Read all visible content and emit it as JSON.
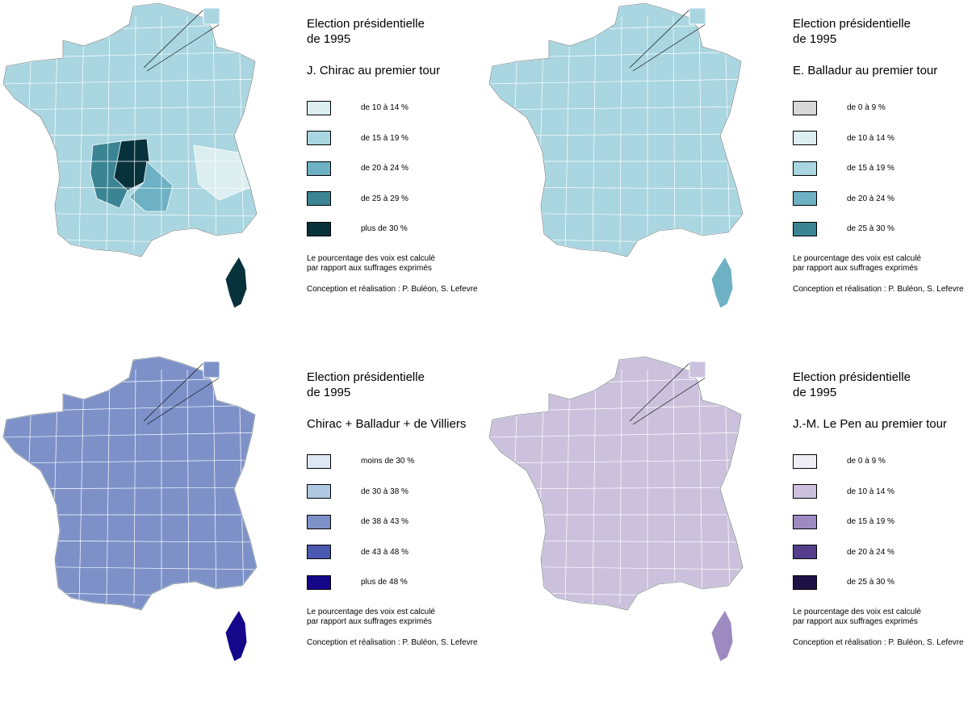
{
  "maps": [
    {
      "title_line1": "Election présidentielle",
      "title_line2": "de 1995",
      "subtitle": "J. Chirac au premier tour",
      "legend": [
        {
          "label": "de 10 à 14 %",
          "color": "#dceeef"
        },
        {
          "label": "de 15 à 19 %",
          "color": "#a9d6e0"
        },
        {
          "label": "de 20 à 24 %",
          "color": "#6eb1c4"
        },
        {
          "label": "de 25 à 29 %",
          "color": "#3b8494"
        },
        {
          "label": "plus de 30 %",
          "color": "#07323b"
        }
      ],
      "note_line1": "Le pourcentage des voix est calculé",
      "note_line2": "par rapport aux suffrages exprimés",
      "credit": "Conception et réalisation : P. Buléon, S. Lefevre",
      "base_color": "#a9d6e0",
      "corsica_color": "#07323b"
    },
    {
      "title_line1": "Election présidentielle",
      "title_line2": "de 1995",
      "subtitle": "E. Balladur au premier tour",
      "legend": [
        {
          "label": "de 0 à 9 %",
          "color": "#d8d8d8"
        },
        {
          "label": "de 10 à 14 %",
          "color": "#dceeef"
        },
        {
          "label": "de 15 à 19 %",
          "color": "#a9d6e0"
        },
        {
          "label": "de 20 à 24 %",
          "color": "#6eb1c4"
        },
        {
          "label": "de 25 à 30 %",
          "color": "#3b8494"
        }
      ],
      "note_line1": "Le pourcentage des voix est calculé",
      "note_line2": "par rapport aux suffrages exprimés",
      "credit": "Conception et réalisation : P. Buléon, S. Lefevre",
      "base_color": "#a9d6e0",
      "corsica_color": "#6eb1c4"
    },
    {
      "title_line1": "Election présidentielle",
      "title_line2": "de 1995",
      "subtitle": "Chirac + Balladur + de Villiers",
      "legend": [
        {
          "label": "moins de 30 %",
          "color": "#dde8f4"
        },
        {
          "label": "de 30 à 38 %",
          "color": "#b1c8e2"
        },
        {
          "label": "de 38 à 43 %",
          "color": "#7d91c8"
        },
        {
          "label": "de 43 à 48 %",
          "color": "#4b58b0"
        },
        {
          "label": "plus de 48 %",
          "color": "#16068a"
        }
      ],
      "note_line1": "Le pourcentage des voix est calculé",
      "note_line2": "par rapport aux suffrages exprimés",
      "credit": "Conception et réalisation : P. Buléon, S. Lefevre",
      "base_color": "#7d91c8",
      "corsica_color": "#16068a"
    },
    {
      "title_line1": "Election présidentielle",
      "title_line2": "de 1995",
      "subtitle": "J.-M. Le Pen au premier tour",
      "legend": [
        {
          "label": "de 0 à 9 %",
          "color": "#f0eef5"
        },
        {
          "label": "de 10 à 14 %",
          "color": "#cbc1dc"
        },
        {
          "label": "de 15 à 19 %",
          "color": "#9d8ac0"
        },
        {
          "label": "de 20 à 24 %",
          "color": "#543e8c"
        },
        {
          "label": "de 25 à 30 %",
          "color": "#1d1145"
        }
      ],
      "note_line1": "Le pourcentage des voix est calculé",
      "note_line2": "par rapport aux suffrages exprimés",
      "credit": "Conception et réalisation : P. Buléon, S. Lefevre",
      "base_color": "#cbc1dc",
      "corsica_color": "#9d8ac0"
    }
  ]
}
